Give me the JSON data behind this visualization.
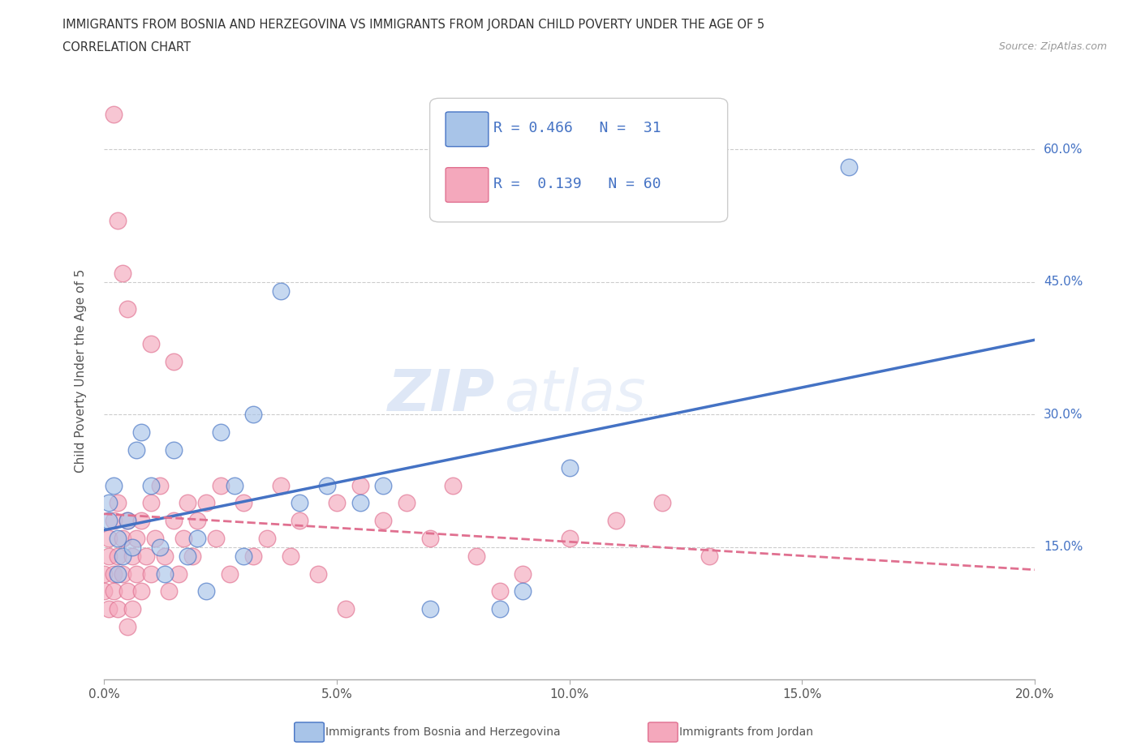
{
  "title_line1": "IMMIGRANTS FROM BOSNIA AND HERZEGOVINA VS IMMIGRANTS FROM JORDAN CHILD POVERTY UNDER THE AGE OF 5",
  "title_line2": "CORRELATION CHART",
  "source_text": "Source: ZipAtlas.com",
  "ylabel": "Child Poverty Under the Age of 5",
  "xlim": [
    0.0,
    0.2
  ],
  "ylim": [
    0.0,
    0.7
  ],
  "color_bosnia": "#a8c4e8",
  "color_jordan": "#f4a8bc",
  "line_color_bosnia": "#4472c4",
  "line_color_jordan": "#e07090",
  "watermark_zip": "ZIP",
  "watermark_atlas": "atlas",
  "grid_color": "#cccccc",
  "bg_color": "#ffffff",
  "bosnia_x": [
    0.001,
    0.001,
    0.002,
    0.003,
    0.003,
    0.004,
    0.005,
    0.006,
    0.007,
    0.008,
    0.01,
    0.012,
    0.013,
    0.015,
    0.018,
    0.02,
    0.022,
    0.025,
    0.028,
    0.03,
    0.032,
    0.038,
    0.042,
    0.048,
    0.055,
    0.06,
    0.07,
    0.085,
    0.09,
    0.1,
    0.16
  ],
  "bosnia_y": [
    0.2,
    0.18,
    0.22,
    0.16,
    0.12,
    0.14,
    0.18,
    0.15,
    0.26,
    0.28,
    0.22,
    0.15,
    0.12,
    0.26,
    0.14,
    0.16,
    0.1,
    0.28,
    0.22,
    0.14,
    0.3,
    0.44,
    0.2,
    0.22,
    0.2,
    0.22,
    0.08,
    0.08,
    0.1,
    0.24,
    0.58
  ],
  "jordan_x": [
    0.0,
    0.0,
    0.001,
    0.001,
    0.001,
    0.002,
    0.002,
    0.002,
    0.003,
    0.003,
    0.003,
    0.004,
    0.004,
    0.005,
    0.005,
    0.005,
    0.006,
    0.006,
    0.007,
    0.007,
    0.008,
    0.008,
    0.009,
    0.01,
    0.01,
    0.011,
    0.012,
    0.013,
    0.014,
    0.015,
    0.016,
    0.017,
    0.018,
    0.019,
    0.02,
    0.022,
    0.024,
    0.025,
    0.027,
    0.03,
    0.032,
    0.035,
    0.038,
    0.04,
    0.042,
    0.046,
    0.05,
    0.052,
    0.055,
    0.06,
    0.065,
    0.07,
    0.075,
    0.08,
    0.085,
    0.09,
    0.1,
    0.11,
    0.12,
    0.13
  ],
  "jordan_y": [
    0.12,
    0.1,
    0.08,
    0.14,
    0.16,
    0.12,
    0.1,
    0.18,
    0.08,
    0.14,
    0.2,
    0.12,
    0.16,
    0.06,
    0.1,
    0.18,
    0.14,
    0.08,
    0.12,
    0.16,
    0.1,
    0.18,
    0.14,
    0.12,
    0.2,
    0.16,
    0.22,
    0.14,
    0.1,
    0.18,
    0.12,
    0.16,
    0.2,
    0.14,
    0.18,
    0.2,
    0.16,
    0.22,
    0.12,
    0.2,
    0.14,
    0.16,
    0.22,
    0.14,
    0.18,
    0.12,
    0.2,
    0.08,
    0.22,
    0.18,
    0.2,
    0.16,
    0.22,
    0.14,
    0.1,
    0.12,
    0.16,
    0.18,
    0.2,
    0.14
  ],
  "jordan_outlier_x": [
    0.002,
    0.003,
    0.004,
    0.005,
    0.01,
    0.015
  ],
  "jordan_outlier_y": [
    0.64,
    0.52,
    0.46,
    0.42,
    0.38,
    0.36
  ]
}
